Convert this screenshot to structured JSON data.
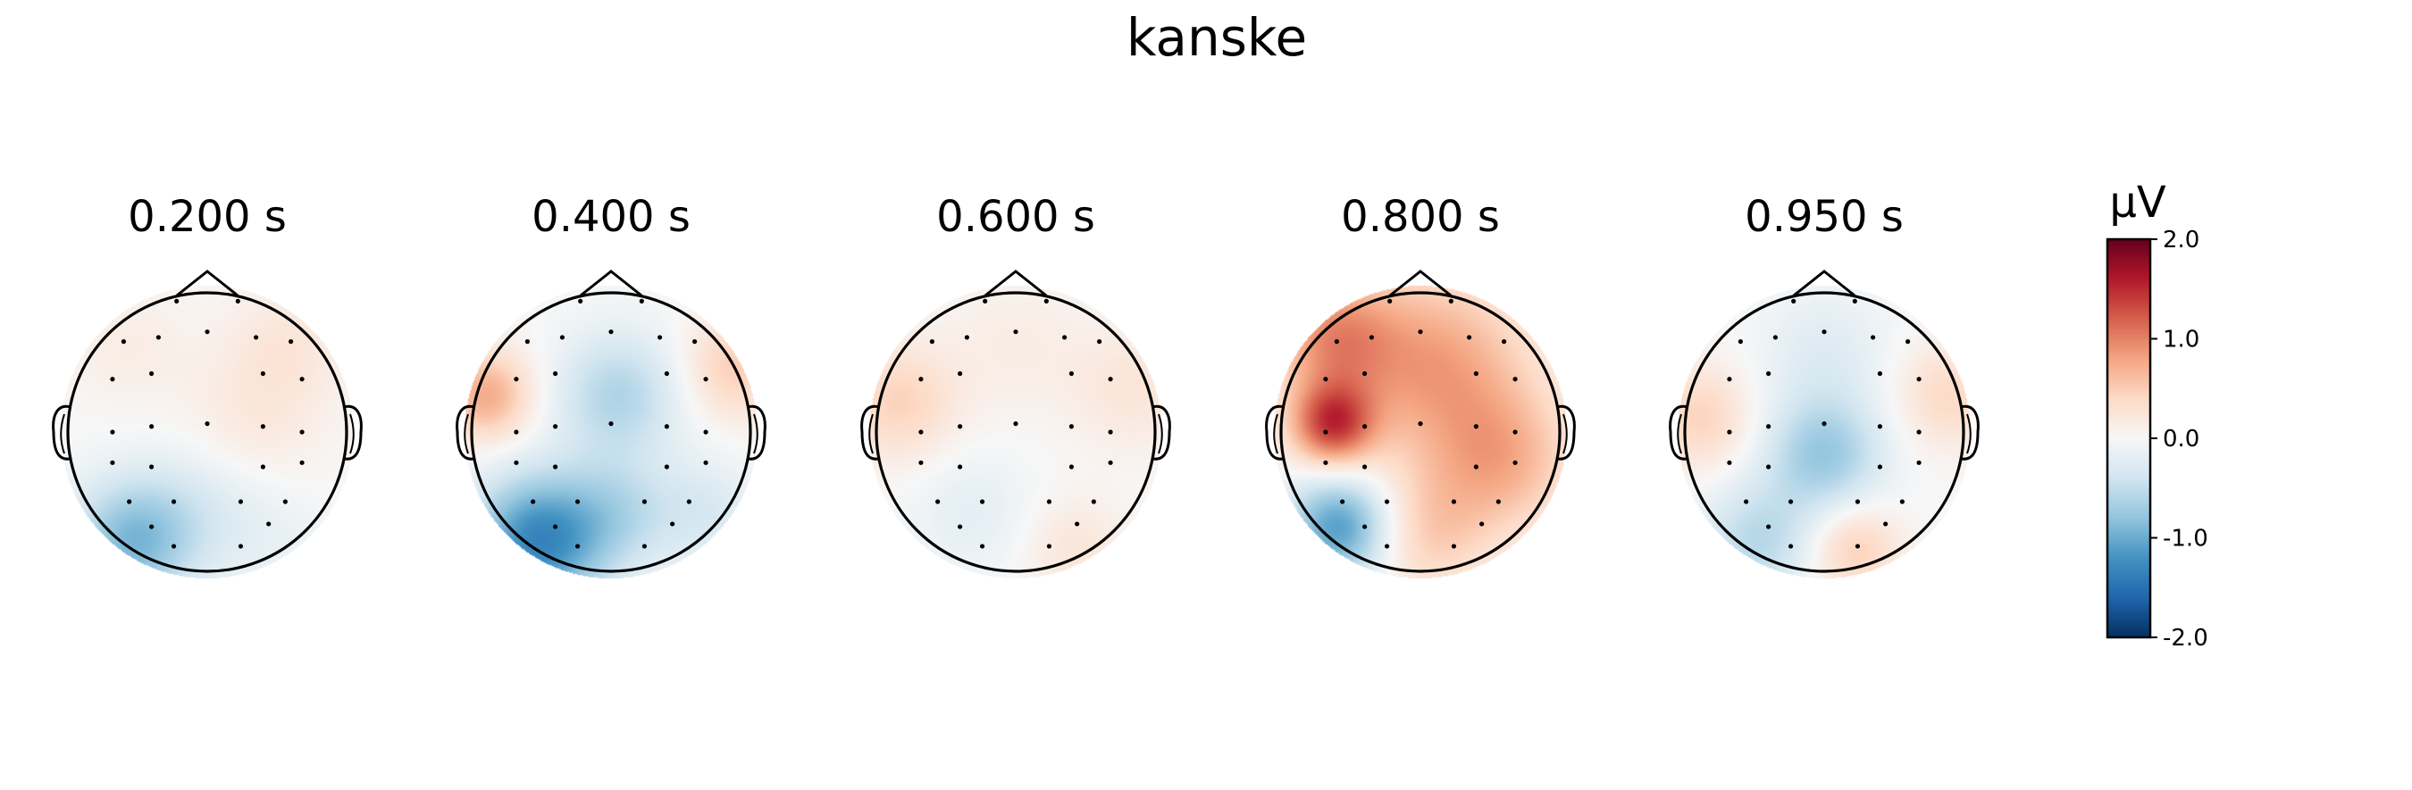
{
  "chart_data": {
    "type": "heatmap",
    "title": "kanske",
    "panels": [
      {
        "label": "0.200 s",
        "blobs": [
          {
            "x": -0.5,
            "y": -0.75,
            "v": -0.9,
            "s": 0.3
          },
          {
            "x": -0.05,
            "y": -0.45,
            "v": -0.2,
            "s": 0.3
          },
          {
            "x": 0.3,
            "y": 0.05,
            "v": 0.2,
            "s": 0.35
          },
          {
            "x": 0.55,
            "y": 0.6,
            "v": 0.22,
            "s": 0.3
          },
          {
            "x": -0.55,
            "y": 0.6,
            "v": 0.15,
            "s": 0.3
          },
          {
            "x": 0.4,
            "y": -0.7,
            "v": -0.15,
            "s": 0.3
          }
        ]
      },
      {
        "label": "0.400 s",
        "blobs": [
          {
            "x": -0.5,
            "y": -0.75,
            "v": -1.3,
            "s": 0.32
          },
          {
            "x": 0.05,
            "y": -0.55,
            "v": -0.45,
            "s": 0.28
          },
          {
            "x": 0.05,
            "y": 0.25,
            "v": -0.6,
            "s": 0.3
          },
          {
            "x": -0.85,
            "y": 0.25,
            "v": 0.75,
            "s": 0.22
          },
          {
            "x": 0.85,
            "y": 0.45,
            "v": 0.5,
            "s": 0.25
          },
          {
            "x": 0.65,
            "y": -0.55,
            "v": -0.3,
            "s": 0.25
          }
        ]
      },
      {
        "label": "0.600 s",
        "blobs": [
          {
            "x": -0.8,
            "y": 0.2,
            "v": 0.45,
            "s": 0.28
          },
          {
            "x": 0.8,
            "y": 0.3,
            "v": 0.25,
            "s": 0.3
          },
          {
            "x": -0.3,
            "y": -0.55,
            "v": -0.2,
            "s": 0.3
          },
          {
            "x": 0.4,
            "y": -0.8,
            "v": 0.25,
            "s": 0.25
          },
          {
            "x": 0.0,
            "y": 0.6,
            "v": 0.15,
            "s": 0.35
          }
        ]
      },
      {
        "label": "0.800 s",
        "blobs": [
          {
            "x": -0.6,
            "y": 0.05,
            "v": 1.3,
            "s": 0.2
          },
          {
            "x": 0.1,
            "y": 0.45,
            "v": 0.8,
            "s": 0.45
          },
          {
            "x": 0.55,
            "y": -0.2,
            "v": 0.65,
            "s": 0.35
          },
          {
            "x": -0.55,
            "y": -0.65,
            "v": -1.15,
            "s": 0.25
          },
          {
            "x": 0.05,
            "y": -0.7,
            "v": 0.45,
            "s": 0.3
          },
          {
            "x": -0.6,
            "y": 0.65,
            "v": 0.8,
            "s": 0.3
          }
        ]
      },
      {
        "label": "0.950 s",
        "blobs": [
          {
            "x": 0.0,
            "y": -0.15,
            "v": -0.75,
            "s": 0.28
          },
          {
            "x": -0.45,
            "y": -0.75,
            "v": -0.55,
            "s": 0.28
          },
          {
            "x": -0.85,
            "y": 0.1,
            "v": 0.45,
            "s": 0.25
          },
          {
            "x": 0.85,
            "y": 0.25,
            "v": 0.4,
            "s": 0.25
          },
          {
            "x": 0.2,
            "y": -0.8,
            "v": 0.5,
            "s": 0.22
          },
          {
            "x": 0.0,
            "y": 0.55,
            "v": -0.25,
            "s": 0.3
          }
        ]
      }
    ],
    "colorbar": {
      "label": "μV",
      "range": [
        -2.0,
        2.0
      ],
      "ticks": [
        "2.0",
        "1.0",
        "0.0",
        "-1.0",
        "-2.0"
      ],
      "colormap": [
        "#67001f",
        "#b2182b",
        "#d6604d",
        "#f4a582",
        "#fddbc7",
        "#f7f7f7",
        "#d1e5f0",
        "#92c5de",
        "#4393c3",
        "#2166ac",
        "#053061"
      ]
    },
    "sensors": [
      [
        -0.22,
        0.94
      ],
      [
        0.22,
        0.94
      ],
      [
        -0.6,
        0.65
      ],
      [
        -0.35,
        0.68
      ],
      [
        0.0,
        0.72
      ],
      [
        0.35,
        0.68
      ],
      [
        0.6,
        0.65
      ],
      [
        -0.68,
        0.38
      ],
      [
        -0.4,
        0.42
      ],
      [
        0.4,
        0.42
      ],
      [
        0.68,
        0.38
      ],
      [
        -0.68,
        0.0
      ],
      [
        -0.4,
        0.04
      ],
      [
        0.0,
        0.06
      ],
      [
        0.4,
        0.04
      ],
      [
        0.68,
        0.0
      ],
      [
        -0.68,
        -0.22
      ],
      [
        -0.4,
        -0.25
      ],
      [
        0.4,
        -0.25
      ],
      [
        0.68,
        -0.22
      ],
      [
        -0.56,
        -0.5
      ],
      [
        -0.24,
        -0.5
      ],
      [
        0.24,
        -0.5
      ],
      [
        0.56,
        -0.5
      ],
      [
        -0.4,
        -0.68
      ],
      [
        0.44,
        -0.66
      ],
      [
        -0.24,
        -0.82
      ],
      [
        0.24,
        -0.82
      ]
    ]
  }
}
